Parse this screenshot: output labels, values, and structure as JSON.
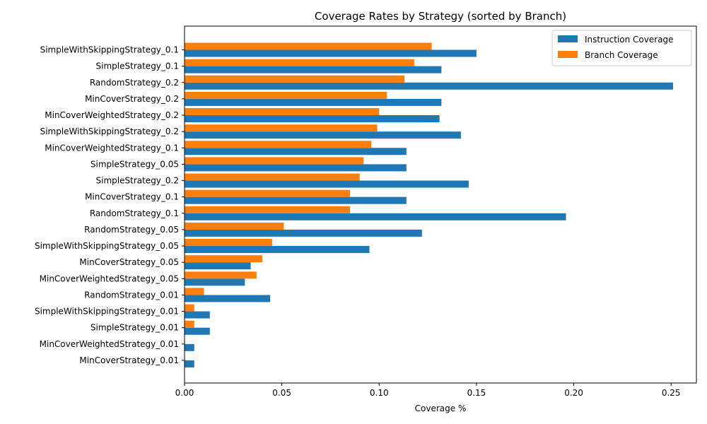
{
  "chart_data": {
    "type": "bar",
    "orientation": "horizontal",
    "title": "Coverage Rates by Strategy (sorted by Branch)",
    "xlabel": "Coverage %",
    "ylabel": "",
    "xlim": [
      0,
      0.263
    ],
    "xticks": [
      0.0,
      0.05,
      0.1,
      0.15,
      0.2,
      0.25
    ],
    "xtick_labels": [
      "0.00",
      "0.05",
      "0.10",
      "0.15",
      "0.20",
      "0.25"
    ],
    "grid": false,
    "legend_position": "top-right",
    "categories": [
      "SimpleWithSkippingStrategy_0.1",
      "SimpleStrategy_0.1",
      "RandomStrategy_0.2",
      "MinCoverStrategy_0.2",
      "MinCoverWeightedStrategy_0.2",
      "SimpleWithSkippingStrategy_0.2",
      "MinCoverWeightedStrategy_0.1",
      "SimpleStrategy_0.05",
      "SimpleStrategy_0.2",
      "MinCoverStrategy_0.1",
      "RandomStrategy_0.1",
      "RandomStrategy_0.05",
      "SimpleWithSkippingStrategy_0.05",
      "MinCoverStrategy_0.05",
      "MinCoverWeightedStrategy_0.05",
      "RandomStrategy_0.01",
      "SimpleWithSkippingStrategy_0.01",
      "SimpleStrategy_0.01",
      "MinCoverWeightedStrategy_0.01",
      "MinCoverStrategy_0.01"
    ],
    "series": [
      {
        "name": "Instruction Coverage",
        "color": "#1f77b4",
        "values": [
          0.15,
          0.132,
          0.251,
          0.132,
          0.131,
          0.142,
          0.114,
          0.114,
          0.146,
          0.114,
          0.196,
          0.122,
          0.095,
          0.034,
          0.031,
          0.044,
          0.013,
          0.013,
          0.005,
          0.005
        ]
      },
      {
        "name": "Branch Coverage",
        "color": "#ff7f0e",
        "values": [
          0.127,
          0.118,
          0.113,
          0.104,
          0.1,
          0.099,
          0.096,
          0.092,
          0.09,
          0.085,
          0.085,
          0.051,
          0.045,
          0.04,
          0.037,
          0.01,
          0.005,
          0.005,
          0.0,
          0.0
        ]
      }
    ]
  }
}
